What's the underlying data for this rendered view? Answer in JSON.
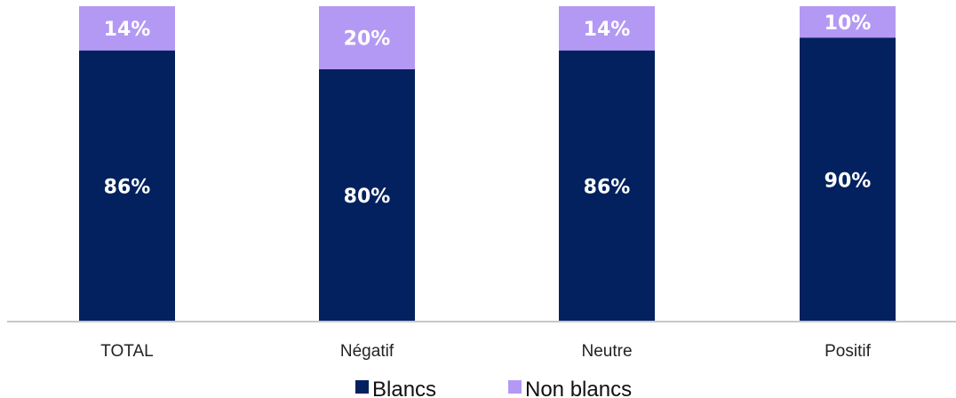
{
  "chart_data": {
    "type": "bar",
    "stacked": true,
    "categories": [
      "TOTAL",
      "Négatif",
      "Neutre",
      "Positif"
    ],
    "series": [
      {
        "name": "Blancs",
        "values": [
          86,
          80,
          86,
          90
        ],
        "labels": [
          "86%",
          "80%",
          "86%",
          "90%"
        ],
        "color": "#03215e"
      },
      {
        "name": "Non blancs",
        "values": [
          14,
          20,
          14,
          10
        ],
        "labels": [
          "14%",
          "20%",
          "14%",
          "10%"
        ],
        "color": "#b399f4"
      }
    ],
    "ylim": [
      0,
      100
    ],
    "grid": false,
    "legend": "bottom"
  }
}
